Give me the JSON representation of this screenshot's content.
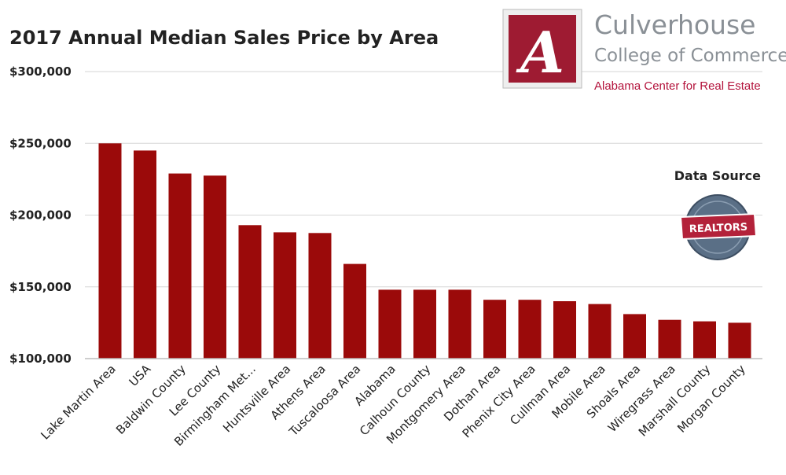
{
  "chart_data": {
    "type": "bar",
    "title": "2017 Annual Median Sales Price by Area",
    "categories": [
      "Lake Martin Area",
      "USA",
      "Baldwin County",
      "Lee County",
      "Birmingham Met...",
      "Huntsville Area",
      "Athens Area",
      "Tuscaloosa Area",
      "Alabama",
      "Calhoun County",
      "Montgomery Area",
      "Dothan Area",
      "Phenix City Area",
      "Cullman Area",
      "Mobile Area",
      "Shoals Area",
      "Wiregrass Area",
      "Marshall County",
      "Morgan County"
    ],
    "values": [
      250000,
      245000,
      229000,
      227500,
      193000,
      188000,
      187500,
      166000,
      148000,
      148000,
      148000,
      141000,
      141000,
      140000,
      138000,
      131000,
      127000,
      126000,
      125000
    ],
    "ylim": [
      100000,
      300000
    ],
    "yticks": [
      100000,
      150000,
      200000,
      250000,
      300000
    ],
    "ytick_labels": [
      "$100,000",
      "$150,000",
      "$200,000",
      "$250,000",
      "$300,000"
    ],
    "grid": true,
    "bar_color": "#9b0a0a"
  },
  "branding": {
    "name": "Culverhouse",
    "college": "College of Commerce",
    "center": "Alabama Center for Real Estate",
    "logo_letter": "A",
    "logo_color": "#9e1b32"
  },
  "data_source": {
    "label": "Data Source",
    "badge_text": "REALTORS",
    "badge_color": "#b3223a"
  }
}
